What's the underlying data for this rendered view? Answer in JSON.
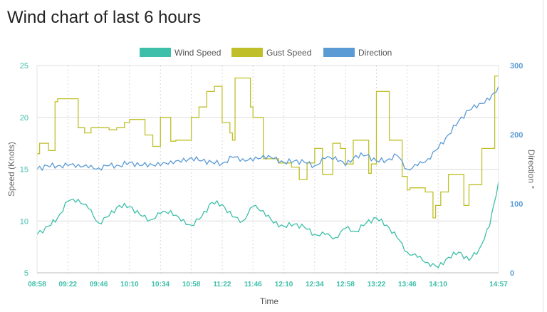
{
  "page": {
    "title": "Wind chart of last 6 hours"
  },
  "colors": {
    "wind": "#3dbfa9",
    "gust": "#bfbf2a",
    "direction": "#5b9bd5",
    "tick": "#3dbfa9",
    "grid": "#dddddd"
  },
  "chart_data": {
    "type": "line",
    "title": "",
    "xlabel": "Time",
    "ylabel": "Speed (Knots)",
    "ylabel_right": "Direction °",
    "ylim": [
      5,
      25
    ],
    "ylim_right": [
      0,
      300
    ],
    "yticks": [
      "25",
      "20",
      "15",
      "10",
      "5"
    ],
    "yticks_right": [
      "300",
      "200",
      "100",
      "0"
    ],
    "xticks": [
      "08:58",
      "09:22",
      "09:46",
      "10:10",
      "10:34",
      "10:58",
      "11:22",
      "11:46",
      "12:10",
      "12:34",
      "12:58",
      "13:22",
      "13:46",
      "14:10",
      "14:57"
    ],
    "legend_position": "top-center",
    "grid": true,
    "series": [
      {
        "name": "Wind Speed",
        "axis": "left",
        "x": [
          "08:58",
          "09:07",
          "09:14",
          "09:22",
          "09:30",
          "09:38",
          "09:46",
          "09:54",
          "10:02",
          "10:10",
          "10:18",
          "10:26",
          "10:34",
          "10:42",
          "10:50",
          "10:58",
          "11:06",
          "11:14",
          "11:22",
          "11:30",
          "11:38",
          "11:46",
          "11:54",
          "12:02",
          "12:10",
          "12:18",
          "12:26",
          "12:34",
          "12:42",
          "12:50",
          "12:58",
          "13:06",
          "13:14",
          "13:22",
          "13:30",
          "13:38",
          "13:46",
          "13:54",
          "14:02",
          "14:10",
          "14:18",
          "14:26",
          "14:34",
          "14:42",
          "14:50",
          "14:57"
        ],
        "values": [
          8.7,
          9.5,
          10.3,
          11.9,
          12.1,
          11.2,
          9.8,
          10.5,
          11.5,
          11.4,
          10.6,
          10.1,
          10.7,
          11.0,
          10.0,
          9.6,
          10.4,
          11.8,
          11.6,
          10.4,
          10.0,
          11.4,
          11.0,
          9.8,
          9.5,
          9.7,
          9.4,
          8.7,
          8.7,
          8.4,
          9.3,
          9.0,
          9.8,
          10.3,
          9.6,
          8.4,
          7.0,
          6.5,
          6.0,
          5.5,
          6.5,
          7.0,
          6.2,
          7.3,
          9.5,
          13.8
        ]
      },
      {
        "name": "Gust Speed",
        "axis": "left",
        "x": [
          "08:58",
          "09:00",
          "09:03",
          "09:07",
          "09:12",
          "09:14",
          "09:22",
          "09:30",
          "09:35",
          "09:40",
          "09:46",
          "09:54",
          "10:00",
          "10:06",
          "10:10",
          "10:17",
          "10:22",
          "10:28",
          "10:34",
          "10:38",
          "10:42",
          "10:46",
          "10:52",
          "10:58",
          "11:04",
          "11:10",
          "11:16",
          "11:22",
          "11:28",
          "11:30",
          "11:32",
          "11:38",
          "11:44",
          "11:46",
          "11:52",
          "11:54",
          "12:00",
          "12:04",
          "12:06",
          "12:10",
          "12:16",
          "12:22",
          "12:28",
          "12:34",
          "12:38",
          "12:40",
          "12:48",
          "12:54",
          "12:58",
          "13:04",
          "13:10",
          "13:16",
          "13:18",
          "13:22",
          "13:24",
          "13:32",
          "13:38",
          "13:42",
          "13:46",
          "13:48",
          "13:54",
          "14:00",
          "14:06",
          "14:08",
          "14:12",
          "14:18",
          "14:26",
          "14:30",
          "14:34",
          "14:44",
          "14:52",
          "14:54",
          "14:57"
        ],
        "values": [
          16.5,
          17.5,
          17.5,
          16.8,
          21.5,
          21.8,
          21.8,
          19.0,
          18.5,
          19.0,
          19.0,
          18.8,
          19.0,
          19.5,
          19.8,
          19.8,
          18.3,
          17.2,
          20.0,
          20.0,
          17.7,
          17.8,
          17.8,
          20.0,
          21.0,
          22.5,
          23.0,
          19.5,
          18.5,
          17.8,
          23.8,
          23.8,
          21.0,
          20.0,
          20.0,
          16.0,
          16.0,
          16.0,
          15.6,
          15.6,
          15.2,
          14.0,
          15.6,
          17.0,
          17.0,
          14.5,
          17.5,
          17.0,
          15.5,
          17.8,
          17.8,
          14.6,
          15.5,
          22.5,
          22.5,
          17.8,
          17.8,
          14.3,
          13.0,
          13.2,
          13.2,
          12.8,
          10.3,
          11.5,
          12.8,
          14.5,
          14.5,
          11.5,
          13.5,
          17.0,
          17.0,
          24.0,
          24.0
        ]
      },
      {
        "name": "Direction",
        "axis": "right",
        "x": [
          "08:58",
          "09:06",
          "09:14",
          "09:22",
          "09:30",
          "09:38",
          "09:46",
          "09:54",
          "10:02",
          "10:10",
          "10:18",
          "10:26",
          "10:34",
          "10:42",
          "10:50",
          "10:58",
          "11:06",
          "11:14",
          "11:22",
          "11:30",
          "11:38",
          "11:46",
          "11:54",
          "12:02",
          "12:10",
          "12:18",
          "12:26",
          "12:34",
          "12:42",
          "12:50",
          "12:58",
          "13:06",
          "13:14",
          "13:22",
          "13:30",
          "13:38",
          "13:46",
          "13:54",
          "14:02",
          "14:10",
          "14:18",
          "14:26",
          "14:34",
          "14:42",
          "14:50",
          "14:57"
        ],
        "values": [
          150,
          155,
          155,
          155,
          157,
          152,
          152,
          155,
          155,
          160,
          155,
          158,
          155,
          162,
          160,
          167,
          162,
          160,
          158,
          167,
          165,
          162,
          170,
          165,
          160,
          162,
          160,
          155,
          165,
          168,
          155,
          170,
          170,
          162,
          163,
          170,
          150,
          155,
          165,
          180,
          200,
          220,
          235,
          245,
          250,
          270
        ]
      }
    ]
  }
}
